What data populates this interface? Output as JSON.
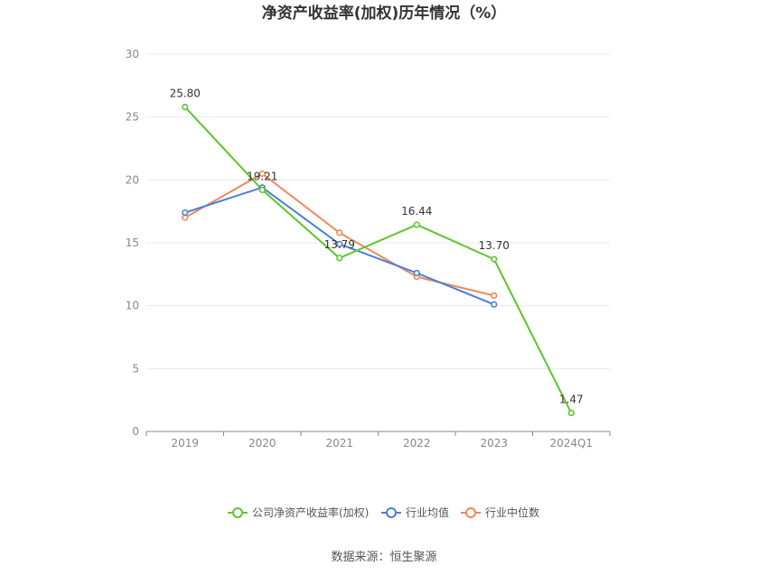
{
  "chart_data": {
    "type": "line",
    "title": "净资产收益率(加权)历年情况（%）",
    "categories": [
      "2019",
      "2020",
      "2021",
      "2022",
      "2023",
      "2024Q1"
    ],
    "ylim": [
      0,
      30
    ],
    "yticks": [
      0,
      5,
      10,
      15,
      20,
      25,
      30
    ],
    "grid": true,
    "legend_position": "bottom",
    "series": [
      {
        "name": "公司净资产收益率(加权)",
        "color": "#5cc62a",
        "values": [
          25.8,
          19.21,
          13.79,
          16.44,
          13.7,
          1.47
        ],
        "labels": [
          "25.80",
          "19.21",
          "13.79",
          "16.44",
          "13.70",
          "1.47"
        ]
      },
      {
        "name": "行业均值",
        "color": "#4a7fd8",
        "values": [
          17.4,
          19.4,
          14.9,
          12.6,
          10.1,
          null
        ]
      },
      {
        "name": "行业中位数",
        "color": "#f0885a",
        "values": [
          17.0,
          20.5,
          15.8,
          12.3,
          10.8,
          null
        ]
      }
    ],
    "source": "数据来源：恒生聚源"
  }
}
